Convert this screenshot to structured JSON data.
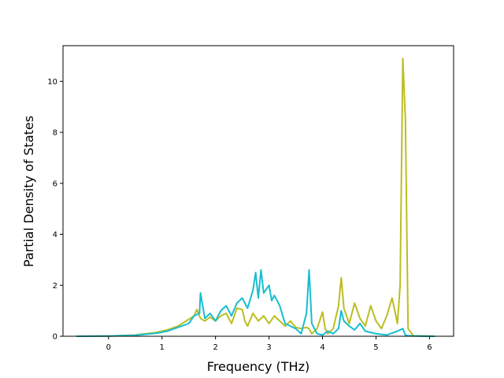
{
  "chart_data": {
    "type": "line",
    "title": "",
    "xlabel": "Frequency (THz)",
    "ylabel": "Partial Density of States",
    "xlim": [
      -0.85,
      6.45
    ],
    "ylim": [
      0,
      11.4
    ],
    "xticks": [
      0,
      1,
      2,
      3,
      4,
      5,
      6
    ],
    "yticks": [
      0,
      2,
      4,
      6,
      8,
      10
    ],
    "grid": false,
    "legend": "none",
    "series": [
      {
        "color": "#bcbd22",
        "x": [
          -0.6,
          0.0,
          0.5,
          0.9,
          1.1,
          1.3,
          1.45,
          1.6,
          1.65,
          1.72,
          1.8,
          1.9,
          2.0,
          2.1,
          2.2,
          2.3,
          2.4,
          2.5,
          2.55,
          2.6,
          2.7,
          2.8,
          2.9,
          3.0,
          3.1,
          3.2,
          3.3,
          3.4,
          3.5,
          3.6,
          3.7,
          3.75,
          3.8,
          3.9,
          4.0,
          4.05,
          4.1,
          4.2,
          4.3,
          4.35,
          4.4,
          4.5,
          4.6,
          4.7,
          4.8,
          4.9,
          5.0,
          5.1,
          5.2,
          5.3,
          5.4,
          5.45,
          5.5,
          5.55,
          5.6,
          5.7,
          6.1
        ],
        "y": [
          0,
          0.01,
          0.05,
          0.15,
          0.25,
          0.4,
          0.6,
          0.8,
          1.05,
          0.7,
          0.6,
          0.75,
          0.6,
          0.8,
          0.9,
          0.5,
          1.1,
          1.05,
          0.6,
          0.4,
          0.9,
          0.6,
          0.8,
          0.5,
          0.8,
          0.6,
          0.4,
          0.6,
          0.35,
          0.3,
          0.35,
          0.3,
          0.1,
          0.3,
          0.95,
          0.3,
          0.1,
          0.3,
          1.2,
          2.3,
          1.1,
          0.5,
          1.3,
          0.7,
          0.4,
          1.2,
          0.6,
          0.3,
          0.8,
          1.5,
          0.5,
          2.0,
          10.9,
          8.5,
          0.3,
          0.02,
          0
        ],
        "name": ""
      },
      {
        "color": "#17becf",
        "x": [
          -0.6,
          0.0,
          0.5,
          0.9,
          1.1,
          1.3,
          1.5,
          1.6,
          1.7,
          1.72,
          1.8,
          1.9,
          2.0,
          2.1,
          2.2,
          2.3,
          2.4,
          2.5,
          2.6,
          2.7,
          2.75,
          2.8,
          2.85,
          2.9,
          3.0,
          3.05,
          3.1,
          3.2,
          3.3,
          3.4,
          3.5,
          3.6,
          3.7,
          3.75,
          3.8,
          3.9,
          4.0,
          4.1,
          4.2,
          4.3,
          4.35,
          4.4,
          4.5,
          4.6,
          4.7,
          4.8,
          4.9,
          5.0,
          5.2,
          5.4,
          5.5,
          5.55,
          5.6,
          5.8,
          6.1
        ],
        "y": [
          0,
          0.01,
          0.04,
          0.12,
          0.2,
          0.35,
          0.5,
          0.8,
          0.9,
          1.7,
          0.7,
          0.9,
          0.6,
          1.0,
          1.2,
          0.8,
          1.3,
          1.5,
          1.1,
          1.8,
          2.5,
          1.5,
          2.6,
          1.7,
          2.0,
          1.4,
          1.6,
          1.2,
          0.5,
          0.4,
          0.3,
          0.1,
          0.9,
          2.6,
          0.5,
          0.1,
          0.05,
          0.2,
          0.1,
          0.3,
          1.0,
          0.6,
          0.4,
          0.25,
          0.5,
          0.2,
          0.15,
          0.1,
          0.05,
          0.2,
          0.3,
          0.05,
          0.02,
          0.01,
          0
        ],
        "name": ""
      }
    ]
  }
}
